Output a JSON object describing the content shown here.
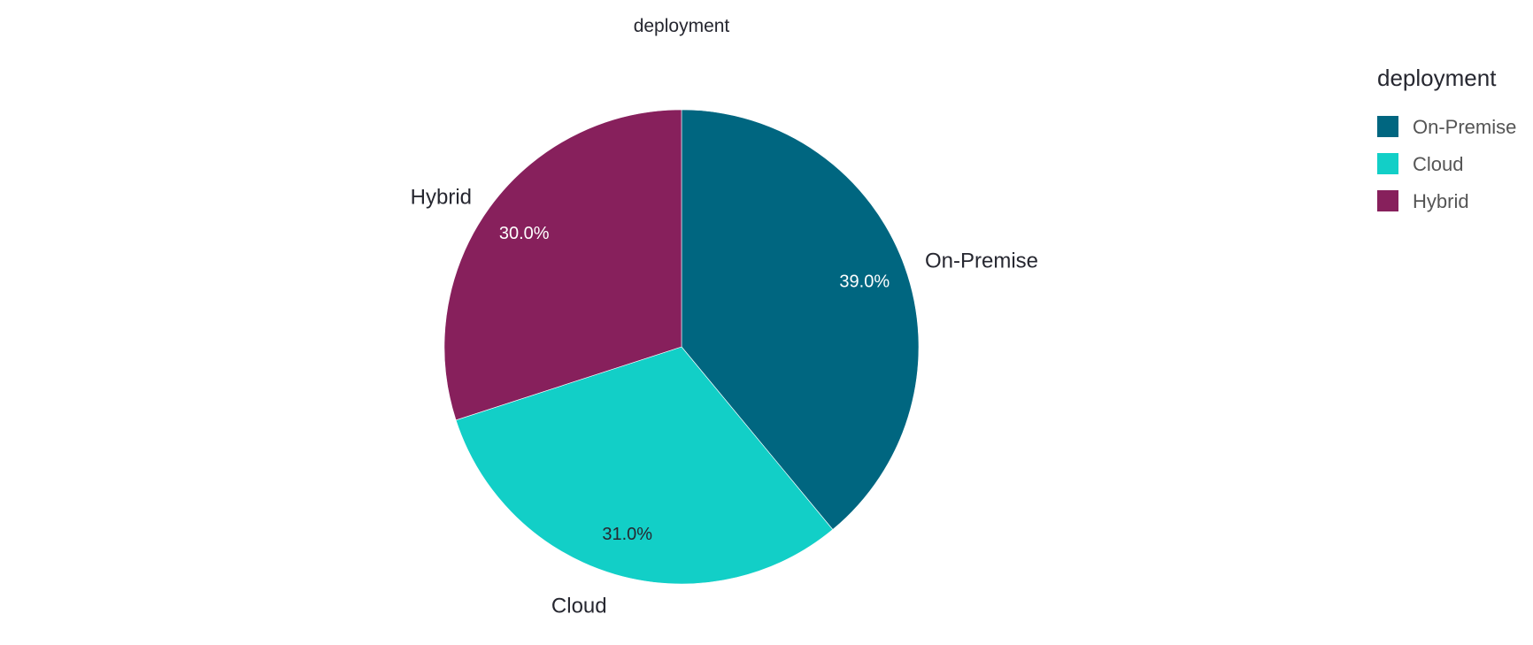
{
  "chart_data": {
    "type": "pie",
    "title": "deployment",
    "legend": {
      "title": "deployment",
      "placement": "top-right"
    },
    "slices": [
      {
        "label": "On-Premise",
        "value": 39.0,
        "display": "39.0%",
        "color": "#006680",
        "text_color": "#ffffff"
      },
      {
        "label": "Cloud",
        "value": 31.0,
        "display": "31.0%",
        "color": "#12CFC7",
        "text_color": "#262730"
      },
      {
        "label": "Hybrid",
        "value": 30.0,
        "display": "30.0%",
        "color": "#87205C",
        "text_color": "#ffffff"
      }
    ],
    "start": "12 o'clock",
    "direction": "clockwise"
  }
}
